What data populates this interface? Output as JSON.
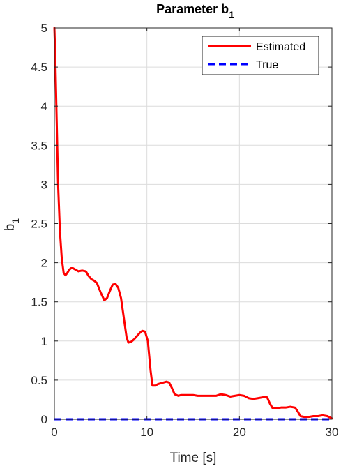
{
  "chart_data": {
    "type": "line",
    "title": "Parameter b",
    "title_subscript": "1",
    "xlabel": "Time [s]",
    "ylabel": "b",
    "ylabel_subscript": "1",
    "xlim": [
      0,
      30
    ],
    "ylim": [
      0,
      5
    ],
    "xticks": [
      0,
      10,
      20,
      30
    ],
    "xtick_labels": [
      "0",
      "10",
      "20",
      "30"
    ],
    "yticks": [
      0,
      0.5,
      1,
      1.5,
      2,
      2.5,
      3,
      3.5,
      4,
      4.5,
      5
    ],
    "ytick_labels": [
      "0",
      "0.5",
      "1",
      "1.5",
      "2",
      "2.5",
      "3",
      "3.5",
      "4",
      "4.5",
      "5"
    ],
    "grid": true,
    "legend_position": "top-right",
    "series": [
      {
        "name": "Estimated",
        "color": "#ff0000",
        "style": "solid",
        "x": [
          0,
          0.1,
          0.25,
          0.4,
          0.6,
          0.8,
          1.0,
          1.2,
          1.4,
          1.6,
          1.8,
          2.0,
          2.3,
          2.6,
          3.0,
          3.4,
          3.7,
          4.0,
          4.3,
          4.6,
          5.0,
          5.4,
          5.7,
          6.0,
          6.3,
          6.6,
          6.9,
          7.2,
          7.5,
          7.8,
          8.0,
          8.3,
          8.6,
          8.9,
          9.2,
          9.5,
          9.8,
          10.1,
          10.4,
          10.6,
          10.9,
          11.2,
          11.5,
          11.8,
          12.1,
          12.4,
          12.7,
          13.0,
          13.4,
          13.7,
          14.0,
          14.5,
          15.0,
          15.5,
          16.0,
          16.5,
          17.0,
          17.5,
          18.0,
          18.5,
          19.0,
          19.5,
          20.0,
          20.5,
          21.0,
          21.5,
          22.0,
          22.5,
          22.8,
          23.0,
          23.3,
          23.6,
          24.0,
          24.5,
          25.0,
          25.5,
          26.0,
          26.3,
          26.6,
          27.0,
          27.5,
          28.0,
          28.5,
          29.0,
          29.5,
          30.0
        ],
        "values": [
          5.0,
          4.6,
          3.8,
          3.0,
          2.4,
          2.05,
          1.87,
          1.84,
          1.87,
          1.91,
          1.93,
          1.93,
          1.91,
          1.89,
          1.9,
          1.89,
          1.83,
          1.79,
          1.77,
          1.74,
          1.62,
          1.52,
          1.55,
          1.64,
          1.72,
          1.73,
          1.68,
          1.55,
          1.3,
          1.05,
          0.98,
          0.99,
          1.02,
          1.06,
          1.1,
          1.13,
          1.12,
          1.0,
          0.62,
          0.43,
          0.43,
          0.45,
          0.46,
          0.47,
          0.48,
          0.47,
          0.4,
          0.32,
          0.3,
          0.31,
          0.31,
          0.31,
          0.31,
          0.3,
          0.3,
          0.3,
          0.3,
          0.3,
          0.32,
          0.31,
          0.29,
          0.3,
          0.31,
          0.3,
          0.27,
          0.26,
          0.27,
          0.28,
          0.29,
          0.28,
          0.2,
          0.14,
          0.14,
          0.15,
          0.15,
          0.16,
          0.15,
          0.1,
          0.04,
          0.03,
          0.03,
          0.04,
          0.04,
          0.05,
          0.04,
          0.01
        ]
      },
      {
        "name": "True",
        "color": "#0000ff",
        "style": "dashed",
        "x": [
          0,
          30
        ],
        "values": [
          0,
          0
        ]
      }
    ]
  }
}
